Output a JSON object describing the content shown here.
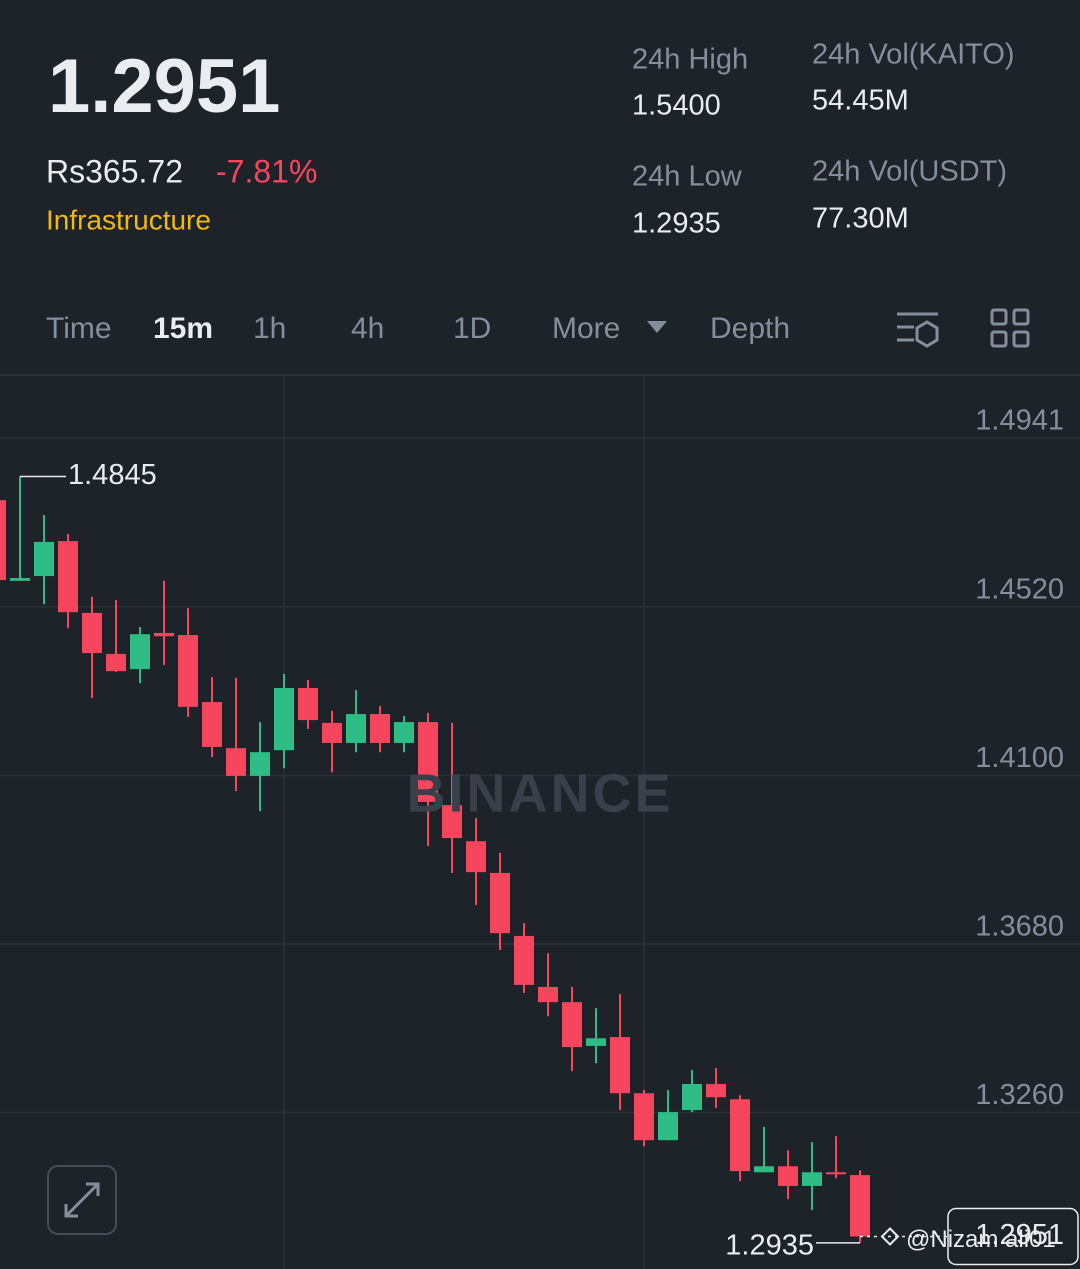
{
  "header": {
    "price": "1.2951",
    "fiat_price": "Rs365.72",
    "change": "-7.81%",
    "tag": "Infrastructure",
    "stats": [
      {
        "label": "24h High",
        "value": "1.5400"
      },
      {
        "label": "24h Vol(KAITO)",
        "value": "54.45M"
      },
      {
        "label": "24h Low",
        "value": "1.2935"
      },
      {
        "label": "24h Vol(USDT)",
        "value": "77.30M"
      }
    ]
  },
  "tabs": [
    "Time",
    "15m",
    "1h",
    "4h",
    "1D",
    "More",
    "Depth"
  ],
  "watermark": "BINANCE",
  "credit": "@Nizam ali01",
  "chart_data": {
    "type": "candlestick",
    "open": [
      1.4786,
      1.4585,
      1.4597,
      1.4684,
      1.4505,
      1.4403,
      1.4365,
      1.4455,
      1.445,
      1.4283,
      1.4168,
      1.4099,
      1.4163,
      1.4318,
      1.4231,
      1.4181,
      1.4253,
      1.4181,
      1.4233,
      1.4026,
      1.3936,
      1.3857,
      1.37,
      1.3573,
      1.3535,
      1.3426,
      1.3448,
      1.3308,
      1.3191,
      1.3266,
      1.3331,
      1.3293,
      1.3111,
      1.3126,
      1.3077,
      1.3111,
      1.3104
    ],
    "high": [
      1.4786,
      1.4845,
      1.4749,
      1.4702,
      1.4545,
      1.4537,
      1.447,
      1.4585,
      1.4517,
      1.4345,
      1.4343,
      1.4233,
      1.4353,
      1.4338,
      1.4261,
      1.4313,
      1.4273,
      1.4248,
      1.4256,
      1.4231,
      1.3994,
      1.3907,
      1.3732,
      1.3657,
      1.3573,
      1.352,
      1.3555,
      1.3316,
      1.3316,
      1.3366,
      1.3371,
      1.3303,
      1.3224,
      1.3166,
      1.3186,
      1.3201,
      1.3116
    ],
    "low": [
      1.4587,
      1.4585,
      1.4527,
      1.4467,
      1.4293,
      1.4358,
      1.433,
      1.4375,
      1.4246,
      1.4146,
      1.4061,
      1.4011,
      1.4118,
      1.4216,
      1.4108,
      1.4158,
      1.4158,
      1.4158,
      1.3924,
      1.3857,
      1.3777,
      1.3665,
      1.3558,
      1.35,
      1.3363,
      1.3383,
      1.3266,
      1.3176,
      1.3191,
      1.3261,
      1.3271,
      1.3089,
      1.3111,
      1.3044,
      1.3017,
      1.3096,
      1.2935
    ],
    "close": [
      1.4587,
      1.4592,
      1.4682,
      1.4507,
      1.4405,
      1.436,
      1.4452,
      1.4447,
      1.4271,
      1.4171,
      1.4099,
      1.4158,
      1.4318,
      1.4238,
      1.4181,
      1.4253,
      1.4181,
      1.4233,
      1.4034,
      1.3944,
      1.3859,
      1.3707,
      1.3578,
      1.3535,
      1.3423,
      1.3445,
      1.3308,
      1.3191,
      1.3261,
      1.3331,
      1.3298,
      1.3114,
      1.3126,
      1.3077,
      1.3111,
      1.3106,
      1.2951
    ],
    "up_color": "#2ebd85",
    "down_color": "#f6465d",
    "ylim": [
      1.287,
      1.5098
    ],
    "yticks": [
      1.4941,
      {
        "value": 1.452,
        "label": "1.4520"
      },
      {
        "value": 1.41,
        "label": "1.4100"
      },
      {
        "value": 1.368,
        "label": "1.3680"
      },
      {
        "value": 1.326,
        "label": "1.3260"
      }
    ],
    "grid": true,
    "high_label": "1.4845",
    "low_label": "1.2935",
    "last_label": "1.2951"
  }
}
